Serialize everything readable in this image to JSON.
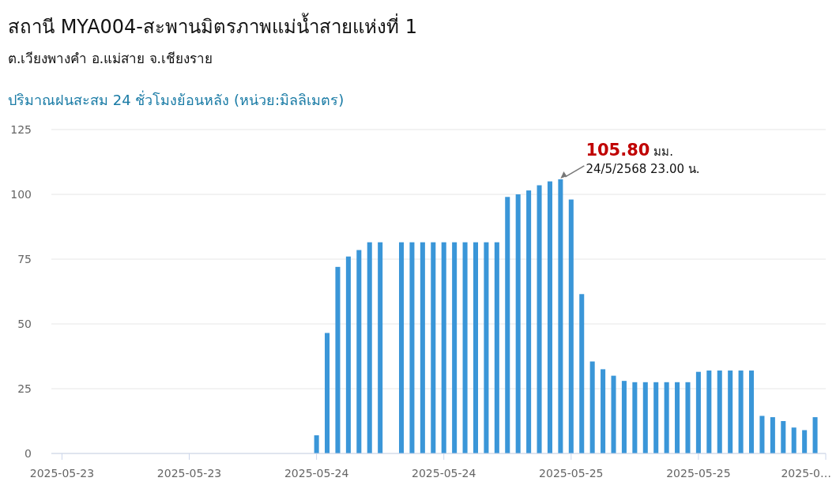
{
  "chart_data": {
    "type": "bar",
    "title": "สถานี MYA004-สะพานมิตรภาพแม่น้ำสายแห่งที่ 1",
    "subtitle": "ต.เวียงพางคำ อ.แม่สาย จ.เชียงราย",
    "ylabel": "ปริมาณฝนสะสม 24 ชั่วโมงย้อนหลัง (หน่วย:มิลลิเมตร)",
    "x": [
      "2025-05-24T00:00",
      "2025-05-24T01:00",
      "2025-05-24T02:00",
      "2025-05-24T03:00",
      "2025-05-24T04:00",
      "2025-05-24T05:00",
      "2025-05-24T06:00",
      "2025-05-24T07:00",
      "2025-05-24T08:00",
      "2025-05-24T09:00",
      "2025-05-24T10:00",
      "2025-05-24T11:00",
      "2025-05-24T12:00",
      "2025-05-24T13:00",
      "2025-05-24T14:00",
      "2025-05-24T15:00",
      "2025-05-24T16:00",
      "2025-05-24T17:00",
      "2025-05-24T18:00",
      "2025-05-24T19:00",
      "2025-05-24T20:00",
      "2025-05-24T21:00",
      "2025-05-24T22:00",
      "2025-05-24T23:00",
      "2025-05-25T00:00",
      "2025-05-25T01:00",
      "2025-05-25T02:00",
      "2025-05-25T03:00",
      "2025-05-25T04:00",
      "2025-05-25T05:00",
      "2025-05-25T06:00",
      "2025-05-25T07:00",
      "2025-05-25T08:00",
      "2025-05-25T09:00",
      "2025-05-25T10:00",
      "2025-05-25T11:00",
      "2025-05-25T12:00",
      "2025-05-25T13:00",
      "2025-05-25T14:00",
      "2025-05-25T15:00",
      "2025-05-25T16:00",
      "2025-05-25T17:00",
      "2025-05-25T18:00",
      "2025-05-25T19:00",
      "2025-05-25T20:00",
      "2025-05-25T21:00",
      "2025-05-25T22:00",
      "2025-05-25T23:00"
    ],
    "values": [
      7,
      46.5,
      72,
      76,
      78.5,
      81.5,
      81.5,
      null,
      81.5,
      81.5,
      81.5,
      81.5,
      81.5,
      81.5,
      81.5,
      81.5,
      81.5,
      81.5,
      99,
      100,
      101.5,
      103.5,
      105,
      105.8,
      98,
      61.5,
      35.5,
      32.5,
      30,
      28,
      27.5,
      27.5,
      27.5,
      27.5,
      27.5,
      27.5,
      31.5,
      32,
      32,
      32,
      32,
      32,
      14.5,
      14,
      12.5,
      10,
      9,
      14
    ],
    "color": "#3a96d8",
    "xlim": [
      "2025-05-22T23:00",
      "2025-05-26T00:00"
    ],
    "xticks": [
      {
        "value": "2025-05-23T00:00",
        "label": "2025-05-23"
      },
      {
        "value": "2025-05-23T12:00",
        "label": "2025-05-23"
      },
      {
        "value": "2025-05-24T00:00",
        "label": "2025-05-24"
      },
      {
        "value": "2025-05-24T12:00",
        "label": "2025-05-24"
      },
      {
        "value": "2025-05-25T00:00",
        "label": "2025-05-25"
      },
      {
        "value": "2025-05-25T12:00",
        "label": "2025-05-25"
      },
      {
        "value": "2025-05-26T00:00",
        "label": "2025-0…"
      }
    ],
    "ylim": [
      0,
      125
    ],
    "yticks": [
      0,
      25,
      50,
      75,
      100,
      125
    ],
    "grid": "y",
    "annotations": [
      {
        "text": "105.80 มม.\n24/5/2568 23.00 น.",
        "x": "2025-05-24T23:00",
        "y": 105.8
      }
    ]
  }
}
